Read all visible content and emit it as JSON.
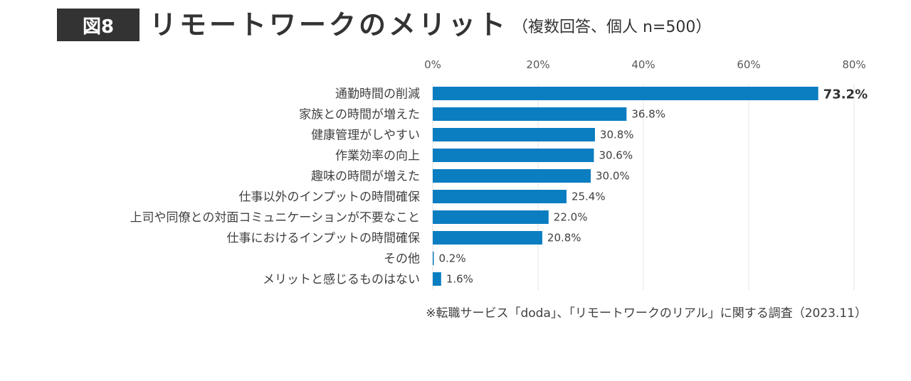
{
  "header": {
    "figure_label": "図8",
    "title": "リモートワークのメリット",
    "subtitle": "（複数回答、個人 n=500）"
  },
  "chart_data": {
    "type": "bar",
    "orientation": "horizontal",
    "categories": [
      "通勤時間の削減",
      "家族との時間が増えた",
      "健康管理がしやすい",
      "作業効率の向上",
      "趣味の時間が増えた",
      "仕事以外のインプットの時間確保",
      "上司や同僚との対面コミュニケーションが不要なこと",
      "仕事におけるインプットの時間確保",
      "その他",
      "メリットと感じるものはない"
    ],
    "values": [
      73.2,
      36.8,
      30.8,
      30.6,
      30.0,
      25.4,
      22.0,
      20.8,
      0.2,
      1.6
    ],
    "value_labels": [
      "73.2%",
      "36.8%",
      "30.8%",
      "30.6%",
      "30.0%",
      "25.4%",
      "22.0%",
      "20.8%",
      "0.2%",
      "1.6%"
    ],
    "ticks": [
      0,
      20,
      40,
      60,
      80
    ],
    "tick_labels": [
      "0%",
      "20%",
      "40%",
      "60%",
      "80%"
    ],
    "xlim": [
      0,
      80
    ],
    "axis_position": "top",
    "grid": true,
    "bar_color": "#0B7DC1",
    "highlight_first": true
  },
  "source": "※転職サービス「doda」、「リモートワークのリアル」に関する調査（2023.11）"
}
